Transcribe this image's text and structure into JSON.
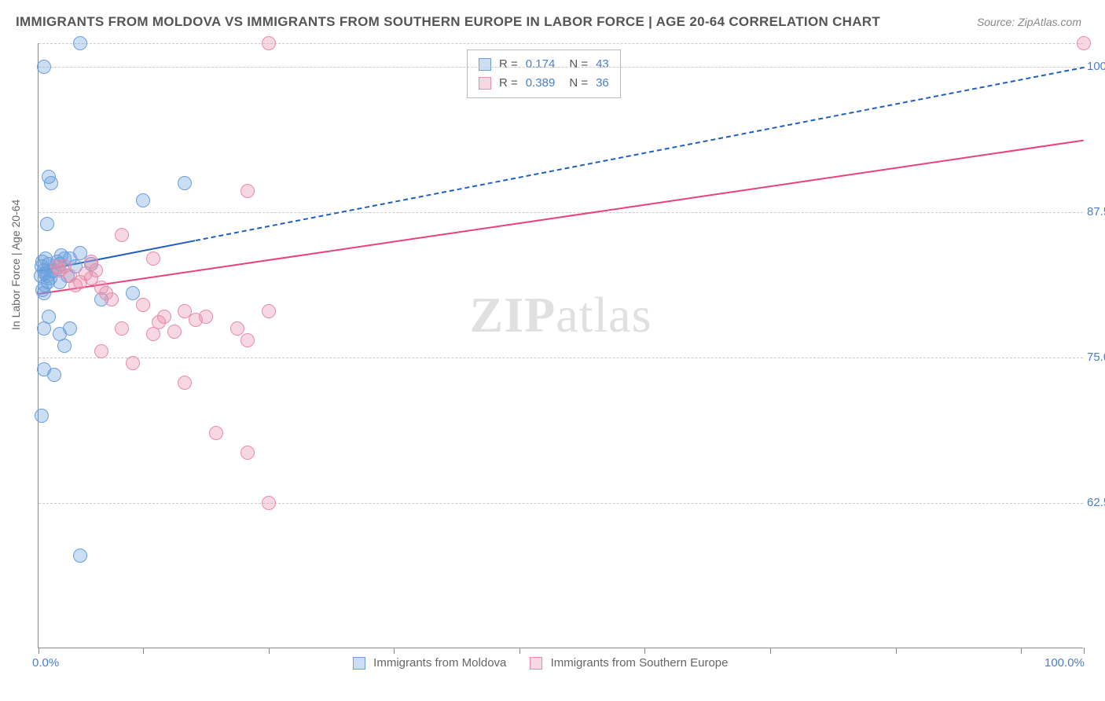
{
  "title": "IMMIGRANTS FROM MOLDOVA VS IMMIGRANTS FROM SOUTHERN EUROPE IN LABOR FORCE | AGE 20-64 CORRELATION CHART",
  "source": "Source: ZipAtlas.com",
  "ylabel": "In Labor Force | Age 20-64",
  "watermark_zip": "ZIP",
  "watermark_atlas": "atlas",
  "chart": {
    "type": "scatter",
    "xlim": [
      0,
      100
    ],
    "ylim": [
      50,
      102
    ],
    "x_ticks": [
      0,
      10,
      22,
      34,
      46,
      58,
      70,
      82,
      94,
      100
    ],
    "x_labels": [
      {
        "v": 0,
        "t": "0.0%"
      },
      {
        "v": 100,
        "t": "100.0%"
      }
    ],
    "y_grid": [
      62.5,
      75.0,
      87.5,
      100.0,
      102.0
    ],
    "y_labels": [
      {
        "v": 62.5,
        "t": "62.5%"
      },
      {
        "v": 75.0,
        "t": "75.0%"
      },
      {
        "v": 87.5,
        "t": "87.5%"
      },
      {
        "v": 100.0,
        "t": "100.0%"
      }
    ],
    "background_color": "#ffffff",
    "grid_color": "#cccccc",
    "axis_color": "#888888",
    "series": [
      {
        "name": "Immigrants from Moldova",
        "fill": "rgba(106,160,220,0.35)",
        "stroke": "#6aa0dc",
        "r_value": "0.174",
        "n_value": "43",
        "trend": {
          "x1": 0,
          "y1": 82.5,
          "x2": 100,
          "y2": 100.0,
          "color": "#1f5fc4",
          "width": 2.5,
          "solid_until_x": 15
        },
        "points": [
          [
            4,
            102
          ],
          [
            0.5,
            100
          ],
          [
            1,
            90.5
          ],
          [
            1.2,
            90
          ],
          [
            0.8,
            86.5
          ],
          [
            14,
            90
          ],
          [
            10,
            88.5
          ],
          [
            1,
            83
          ],
          [
            2,
            83
          ],
          [
            0.5,
            82.5
          ],
          [
            1.5,
            82.5
          ],
          [
            0.2,
            82
          ],
          [
            0.8,
            82
          ],
          [
            3,
            83.5
          ],
          [
            4,
            84
          ],
          [
            5,
            83
          ],
          [
            2,
            81.5
          ],
          [
            0.5,
            80.5
          ],
          [
            9,
            80.5
          ],
          [
            6,
            80
          ],
          [
            1,
            78.5
          ],
          [
            0.5,
            77.5
          ],
          [
            3,
            77.5
          ],
          [
            2,
            77
          ],
          [
            0.5,
            74
          ],
          [
            1.5,
            73.5
          ],
          [
            2.5,
            76
          ],
          [
            0.3,
            82.8
          ],
          [
            0.6,
            82.2
          ],
          [
            1.1,
            81.8
          ],
          [
            0.4,
            83.2
          ],
          [
            0.9,
            81.5
          ],
          [
            3.5,
            82.8
          ],
          [
            2.8,
            82
          ],
          [
            0.3,
            70
          ],
          [
            4,
            58
          ],
          [
            0.7,
            83.5
          ],
          [
            1.8,
            83.2
          ],
          [
            0.4,
            80.8
          ],
          [
            2.2,
            83.8
          ],
          [
            1.3,
            82.4
          ],
          [
            0.6,
            81.2
          ],
          [
            2.5,
            83.5
          ]
        ]
      },
      {
        "name": "Immigrants from Southern Europe",
        "fill": "rgba(232,140,170,0.35)",
        "stroke": "#e88caa",
        "r_value": "0.389",
        "n_value": "36",
        "trend": {
          "x1": 0,
          "y1": 80.5,
          "x2": 100,
          "y2": 93.7,
          "color": "#e8427a",
          "width": 2.5
        },
        "points": [
          [
            22,
            102
          ],
          [
            100,
            102
          ],
          [
            20,
            89.3
          ],
          [
            8,
            85.5
          ],
          [
            5,
            83.2
          ],
          [
            11,
            83.5
          ],
          [
            2,
            82.5
          ],
          [
            3,
            82
          ],
          [
            4,
            81.5
          ],
          [
            5,
            81.8
          ],
          [
            6,
            81
          ],
          [
            7,
            80
          ],
          [
            10,
            79.5
          ],
          [
            14,
            79
          ],
          [
            12,
            78.5
          ],
          [
            8,
            77.5
          ],
          [
            13,
            77.2
          ],
          [
            16,
            78.5
          ],
          [
            11,
            77
          ],
          [
            19,
            77.5
          ],
          [
            22,
            79
          ],
          [
            20,
            76.5
          ],
          [
            6,
            75.5
          ],
          [
            9,
            74.5
          ],
          [
            14,
            72.8
          ],
          [
            17,
            68.5
          ],
          [
            22,
            62.5
          ],
          [
            20,
            66.8
          ],
          [
            3.5,
            81.2
          ],
          [
            2.5,
            82.8
          ],
          [
            4.5,
            82.2
          ],
          [
            6.5,
            80.5
          ],
          [
            15,
            78.2
          ],
          [
            11.5,
            78
          ],
          [
            1.8,
            82.8
          ],
          [
            5.5,
            82.5
          ]
        ]
      }
    ]
  },
  "stats_labels": {
    "r": "R  =",
    "n": "N  ="
  },
  "legend_labels": {
    "s1": "Immigrants from Moldova",
    "s2": "Immigrants from Southern Europe"
  }
}
